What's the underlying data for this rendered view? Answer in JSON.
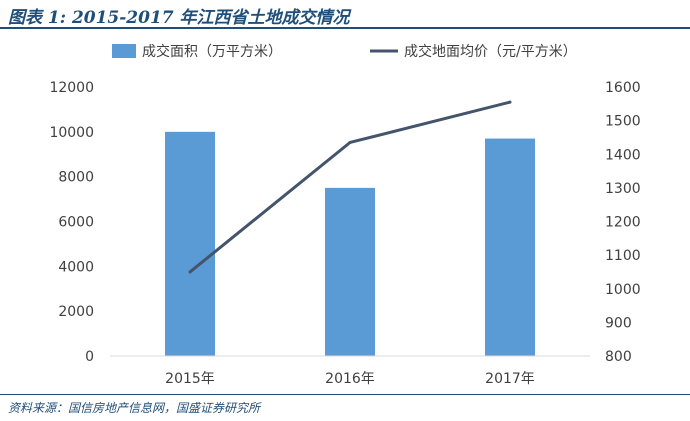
{
  "title": "图表 1:  2015-2017 年江西省土地成交情况",
  "source": "资料来源：国信房地产信息网，国盛证券研究所",
  "chart_data": {
    "type": "bar",
    "categories": [
      "2015年",
      "2016年",
      "2017年"
    ],
    "series": [
      {
        "name": "成交面积（万平方米）",
        "type": "bar",
        "axis": "left",
        "color": "#5b9bd5",
        "values": [
          10000,
          7500,
          9700
        ]
      },
      {
        "name": "成交地面均价（元/平方米）",
        "type": "line",
        "axis": "right",
        "color": "#44546a",
        "values": [
          1050,
          1435,
          1555
        ]
      }
    ],
    "y_left": {
      "min": 0,
      "max": 12000,
      "ticks": [
        "0",
        "2000",
        "4000",
        "6000",
        "8000",
        "10000",
        "12000"
      ]
    },
    "y_right": {
      "min": 800,
      "max": 1600,
      "ticks": [
        "800",
        "900",
        "1000",
        "1100",
        "1200",
        "1300",
        "1400",
        "1500",
        "1600"
      ]
    },
    "legend_position": "top",
    "grid": false
  }
}
